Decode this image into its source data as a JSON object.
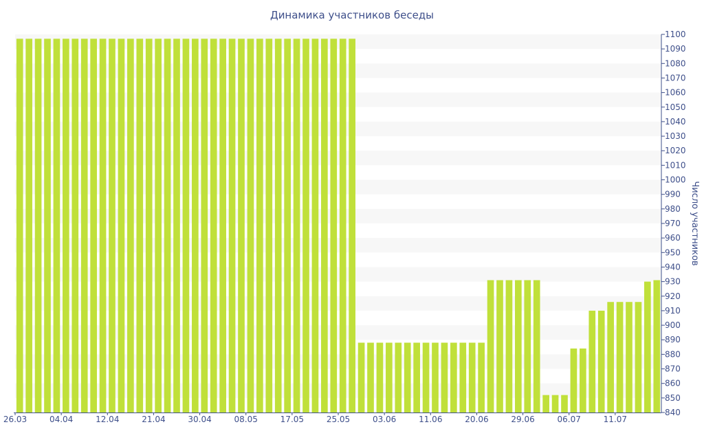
{
  "chart_data": {
    "type": "bar",
    "title": "Динамика участников беседы",
    "xlabel": "",
    "ylabel": "Число участников",
    "ylim": [
      840,
      1100
    ],
    "y_ticks": [
      840,
      850,
      860,
      870,
      880,
      890,
      900,
      910,
      920,
      930,
      940,
      950,
      960,
      970,
      980,
      990,
      1000,
      1010,
      1020,
      1030,
      1040,
      1050,
      1060,
      1070,
      1080,
      1090,
      1100
    ],
    "y_axis_position": "right",
    "grid": "horizontal bands",
    "x_tick_labels": [
      "26.03",
      "04.04",
      "12.04",
      "21.04",
      "30.04",
      "08.05",
      "17.05",
      "25.05",
      "03.06",
      "11.06",
      "20.06",
      "29.06",
      "06.07",
      "11.07"
    ],
    "values": [
      1097,
      1097,
      1097,
      1097,
      1097,
      1097,
      1097,
      1097,
      1097,
      1097,
      1097,
      1097,
      1097,
      1097,
      1097,
      1097,
      1097,
      1097,
      1097,
      1097,
      1097,
      1097,
      1097,
      1097,
      1097,
      1097,
      1097,
      1097,
      1097,
      1097,
      1097,
      1097,
      1097,
      1097,
      1097,
      1097,
      1097,
      888,
      888,
      888,
      888,
      888,
      888,
      888,
      888,
      888,
      888,
      888,
      888,
      888,
      888,
      931,
      931,
      931,
      931,
      931,
      931,
      852,
      852,
      852,
      884,
      884,
      910,
      910,
      916,
      916,
      916,
      916,
      930,
      931
    ],
    "bar_color": "#c0e03a",
    "band_color": "#f7f7f7",
    "axis_color": "#3e4f8a"
  }
}
